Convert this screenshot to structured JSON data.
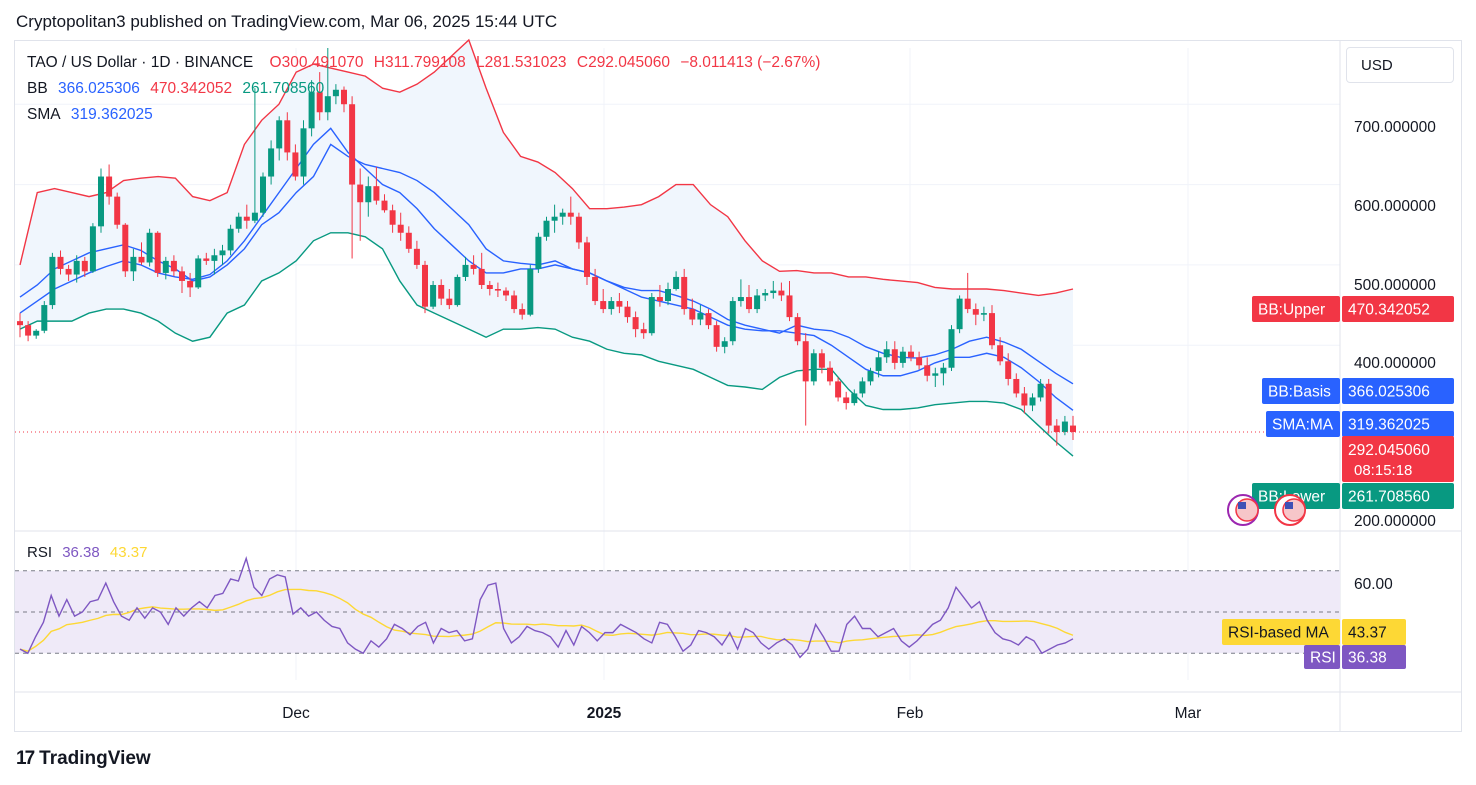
{
  "header": {
    "publisher_line": "Cryptopolitan3 published on TradingView.com, Mar 06, 2025 15:44 UTC"
  },
  "legend": {
    "symbol": "TAO / US Dollar · 1D · BINANCE",
    "open": "O300.491070",
    "high": "H311.799108",
    "low": "L281.531023",
    "close": "C292.045060",
    "change": "−8.011413 (−2.67%)",
    "bb_label": "BB",
    "bb_basis": "366.025306",
    "bb_upper": "470.342052",
    "bb_lower": "261.708560",
    "sma_label": "SMA",
    "sma_value": "319.362025",
    "rsi_label": "RSI",
    "rsi_value": "36.38",
    "rsi_ma_value": "43.37"
  },
  "currency": "USD",
  "footer": {
    "brand": "TradingView"
  },
  "colors": {
    "up": "#089981",
    "down": "#f23645",
    "bb_upper": "#f23645",
    "bb_basis": "#2962ff",
    "bb_lower": "#089981",
    "sma": "#2962ff",
    "rsi": "#7e57c2",
    "rsi_ma": "#fdd835",
    "band_fill": "#f0f6fd",
    "rsi_fill": "#efeaf8"
  },
  "price_axis": {
    "ticks": [
      "700.000000",
      "600.000000",
      "500.000000",
      "400.000000",
      "200.000000"
    ]
  },
  "rsi_axis": {
    "ticks": [
      "60.00"
    ]
  },
  "time_axis": {
    "ticks": [
      "Dec",
      "2025",
      "Feb",
      "Mar"
    ]
  },
  "price_labels": {
    "bb_upper": {
      "name": "BB:Upper",
      "value": "470.342052"
    },
    "bb_basis": {
      "name": "BB:Basis",
      "value": "366.025306"
    },
    "sma": {
      "name": "SMA:MA",
      "value": "319.362025"
    },
    "last": {
      "value": "292.045060",
      "countdown": "08:15:18"
    },
    "bb_lower": {
      "name": "BB:Lower",
      "value": "261.708560"
    }
  },
  "rsi_labels": {
    "rsi_ma": {
      "name": "RSI-based MA",
      "value": "43.37"
    },
    "rsi": {
      "name": "RSI",
      "value": "36.38"
    }
  },
  "chart_data": {
    "type": "candlestick",
    "price_range": [
      170,
      770
    ],
    "rsi_range": [
      18,
      82
    ],
    "rsi_bands": [
      70,
      50,
      30
    ],
    "candles": [
      {
        "o": 430,
        "h": 440,
        "l": 410,
        "c": 425
      },
      {
        "o": 425,
        "h": 430,
        "l": 405,
        "c": 412
      },
      {
        "o": 412,
        "h": 420,
        "l": 408,
        "c": 418
      },
      {
        "o": 418,
        "h": 455,
        "l": 415,
        "c": 450
      },
      {
        "o": 450,
        "h": 515,
        "l": 445,
        "c": 510
      },
      {
        "o": 510,
        "h": 518,
        "l": 488,
        "c": 495
      },
      {
        "o": 495,
        "h": 500,
        "l": 480,
        "c": 488
      },
      {
        "o": 488,
        "h": 512,
        "l": 478,
        "c": 505
      },
      {
        "o": 505,
        "h": 510,
        "l": 485,
        "c": 492
      },
      {
        "o": 492,
        "h": 552,
        "l": 490,
        "c": 548
      },
      {
        "o": 548,
        "h": 620,
        "l": 540,
        "c": 610
      },
      {
        "o": 610,
        "h": 625,
        "l": 575,
        "c": 585
      },
      {
        "o": 585,
        "h": 590,
        "l": 545,
        "c": 550
      },
      {
        "o": 550,
        "h": 552,
        "l": 485,
        "c": 492
      },
      {
        "o": 492,
        "h": 520,
        "l": 480,
        "c": 510
      },
      {
        "o": 510,
        "h": 528,
        "l": 500,
        "c": 503
      },
      {
        "o": 503,
        "h": 545,
        "l": 498,
        "c": 540
      },
      {
        "o": 540,
        "h": 542,
        "l": 485,
        "c": 490
      },
      {
        "o": 490,
        "h": 510,
        "l": 482,
        "c": 505
      },
      {
        "o": 505,
        "h": 512,
        "l": 486,
        "c": 492
      },
      {
        "o": 492,
        "h": 498,
        "l": 465,
        "c": 480
      },
      {
        "o": 480,
        "h": 490,
        "l": 460,
        "c": 472
      },
      {
        "o": 472,
        "h": 512,
        "l": 470,
        "c": 508
      },
      {
        "o": 508,
        "h": 515,
        "l": 500,
        "c": 505
      },
      {
        "o": 505,
        "h": 520,
        "l": 488,
        "c": 512
      },
      {
        "o": 512,
        "h": 525,
        "l": 500,
        "c": 518
      },
      {
        "o": 518,
        "h": 550,
        "l": 512,
        "c": 545
      },
      {
        "o": 545,
        "h": 565,
        "l": 540,
        "c": 560
      },
      {
        "o": 560,
        "h": 575,
        "l": 545,
        "c": 555
      },
      {
        "o": 555,
        "h": 720,
        "l": 552,
        "c": 565
      },
      {
        "o": 565,
        "h": 615,
        "l": 560,
        "c": 610
      },
      {
        "o": 610,
        "h": 655,
        "l": 600,
        "c": 645
      },
      {
        "o": 645,
        "h": 685,
        "l": 630,
        "c": 680
      },
      {
        "o": 680,
        "h": 690,
        "l": 630,
        "c": 640
      },
      {
        "o": 640,
        "h": 650,
        "l": 605,
        "c": 610
      },
      {
        "o": 610,
        "h": 680,
        "l": 600,
        "c": 670
      },
      {
        "o": 670,
        "h": 730,
        "l": 660,
        "c": 715
      },
      {
        "o": 715,
        "h": 740,
        "l": 680,
        "c": 690
      },
      {
        "o": 690,
        "h": 770,
        "l": 680,
        "c": 710
      },
      {
        "o": 710,
        "h": 725,
        "l": 700,
        "c": 718
      },
      {
        "o": 718,
        "h": 722,
        "l": 690,
        "c": 700
      },
      {
        "o": 700,
        "h": 710,
        "l": 508,
        "c": 600
      },
      {
        "o": 600,
        "h": 620,
        "l": 530,
        "c": 578
      },
      {
        "o": 578,
        "h": 610,
        "l": 560,
        "c": 598
      },
      {
        "o": 598,
        "h": 622,
        "l": 575,
        "c": 580
      },
      {
        "o": 580,
        "h": 588,
        "l": 565,
        "c": 568
      },
      {
        "o": 568,
        "h": 575,
        "l": 540,
        "c": 550
      },
      {
        "o": 550,
        "h": 565,
        "l": 530,
        "c": 540
      },
      {
        "o": 540,
        "h": 548,
        "l": 515,
        "c": 520
      },
      {
        "o": 520,
        "h": 530,
        "l": 495,
        "c": 500
      },
      {
        "o": 500,
        "h": 505,
        "l": 440,
        "c": 448
      },
      {
        "o": 448,
        "h": 480,
        "l": 445,
        "c": 475
      },
      {
        "o": 475,
        "h": 482,
        "l": 450,
        "c": 458
      },
      {
        "o": 458,
        "h": 470,
        "l": 445,
        "c": 450
      },
      {
        "o": 450,
        "h": 488,
        "l": 448,
        "c": 485
      },
      {
        "o": 485,
        "h": 510,
        "l": 480,
        "c": 500
      },
      {
        "o": 500,
        "h": 512,
        "l": 488,
        "c": 495
      },
      {
        "o": 495,
        "h": 515,
        "l": 470,
        "c": 475
      },
      {
        "o": 475,
        "h": 480,
        "l": 462,
        "c": 470
      },
      {
        "o": 470,
        "h": 478,
        "l": 460,
        "c": 468
      },
      {
        "o": 468,
        "h": 472,
        "l": 455,
        "c": 462
      },
      {
        "o": 462,
        "h": 468,
        "l": 440,
        "c": 445
      },
      {
        "o": 445,
        "h": 452,
        "l": 432,
        "c": 438
      },
      {
        "o": 438,
        "h": 500,
        "l": 436,
        "c": 495
      },
      {
        "o": 495,
        "h": 540,
        "l": 490,
        "c": 535
      },
      {
        "o": 535,
        "h": 560,
        "l": 530,
        "c": 555
      },
      {
        "o": 555,
        "h": 575,
        "l": 540,
        "c": 560
      },
      {
        "o": 560,
        "h": 570,
        "l": 550,
        "c": 565
      },
      {
        "o": 565,
        "h": 585,
        "l": 550,
        "c": 560
      },
      {
        "o": 560,
        "h": 565,
        "l": 520,
        "c": 528
      },
      {
        "o": 528,
        "h": 535,
        "l": 475,
        "c": 485
      },
      {
        "o": 485,
        "h": 495,
        "l": 450,
        "c": 455
      },
      {
        "o": 455,
        "h": 470,
        "l": 440,
        "c": 445
      },
      {
        "o": 445,
        "h": 460,
        "l": 438,
        "c": 455
      },
      {
        "o": 455,
        "h": 465,
        "l": 440,
        "c": 448
      },
      {
        "o": 448,
        "h": 455,
        "l": 428,
        "c": 435
      },
      {
        "o": 435,
        "h": 442,
        "l": 410,
        "c": 420
      },
      {
        "o": 420,
        "h": 428,
        "l": 408,
        "c": 415
      },
      {
        "o": 415,
        "h": 465,
        "l": 412,
        "c": 460
      },
      {
        "o": 460,
        "h": 475,
        "l": 448,
        "c": 455
      },
      {
        "o": 455,
        "h": 478,
        "l": 450,
        "c": 470
      },
      {
        "o": 470,
        "h": 492,
        "l": 468,
        "c": 485
      },
      {
        "o": 485,
        "h": 495,
        "l": 438,
        "c": 445
      },
      {
        "o": 445,
        "h": 458,
        "l": 425,
        "c": 432
      },
      {
        "o": 432,
        "h": 450,
        "l": 425,
        "c": 440
      },
      {
        "o": 440,
        "h": 445,
        "l": 420,
        "c": 425
      },
      {
        "o": 425,
        "h": 430,
        "l": 392,
        "c": 398
      },
      {
        "o": 398,
        "h": 410,
        "l": 390,
        "c": 405
      },
      {
        "o": 405,
        "h": 460,
        "l": 400,
        "c": 455
      },
      {
        "o": 455,
        "h": 482,
        "l": 448,
        "c": 460
      },
      {
        "o": 460,
        "h": 475,
        "l": 440,
        "c": 445
      },
      {
        "o": 445,
        "h": 470,
        "l": 440,
        "c": 462
      },
      {
        "o": 462,
        "h": 470,
        "l": 455,
        "c": 465
      },
      {
        "o": 465,
        "h": 480,
        "l": 458,
        "c": 468
      },
      {
        "o": 468,
        "h": 478,
        "l": 455,
        "c": 462
      },
      {
        "o": 462,
        "h": 480,
        "l": 430,
        "c": 435
      },
      {
        "o": 435,
        "h": 440,
        "l": 400,
        "c": 405
      },
      {
        "o": 405,
        "h": 415,
        "l": 300,
        "c": 355
      },
      {
        "o": 355,
        "h": 395,
        "l": 350,
        "c": 390
      },
      {
        "o": 390,
        "h": 395,
        "l": 365,
        "c": 372
      },
      {
        "o": 372,
        "h": 380,
        "l": 350,
        "c": 355
      },
      {
        "o": 355,
        "h": 360,
        "l": 330,
        "c": 335
      },
      {
        "o": 335,
        "h": 342,
        "l": 320,
        "c": 328
      },
      {
        "o": 328,
        "h": 345,
        "l": 325,
        "c": 340
      },
      {
        "o": 340,
        "h": 360,
        "l": 335,
        "c": 355
      },
      {
        "o": 355,
        "h": 372,
        "l": 350,
        "c": 368
      },
      {
        "o": 368,
        "h": 392,
        "l": 360,
        "c": 385
      },
      {
        "o": 385,
        "h": 405,
        "l": 378,
        "c": 395
      },
      {
        "o": 395,
        "h": 405,
        "l": 370,
        "c": 378
      },
      {
        "o": 378,
        "h": 398,
        "l": 372,
        "c": 392
      },
      {
        "o": 392,
        "h": 400,
        "l": 380,
        "c": 385
      },
      {
        "o": 385,
        "h": 392,
        "l": 370,
        "c": 375
      },
      {
        "o": 375,
        "h": 385,
        "l": 355,
        "c": 362
      },
      {
        "o": 362,
        "h": 372,
        "l": 348,
        "c": 365
      },
      {
        "o": 365,
        "h": 378,
        "l": 350,
        "c": 372
      },
      {
        "o": 372,
        "h": 425,
        "l": 368,
        "c": 420
      },
      {
        "o": 420,
        "h": 462,
        "l": 415,
        "c": 458
      },
      {
        "o": 458,
        "h": 490,
        "l": 440,
        "c": 445
      },
      {
        "o": 445,
        "h": 452,
        "l": 425,
        "c": 438
      },
      {
        "o": 438,
        "h": 448,
        "l": 430,
        "c": 440
      },
      {
        "o": 440,
        "h": 450,
        "l": 395,
        "c": 400
      },
      {
        "o": 400,
        "h": 410,
        "l": 375,
        "c": 380
      },
      {
        "o": 380,
        "h": 390,
        "l": 350,
        "c": 358
      },
      {
        "o": 358,
        "h": 365,
        "l": 335,
        "c": 340
      },
      {
        "o": 340,
        "h": 348,
        "l": 315,
        "c": 325
      },
      {
        "o": 325,
        "h": 340,
        "l": 318,
        "c": 335
      },
      {
        "o": 335,
        "h": 358,
        "l": 330,
        "c": 352
      },
      {
        "o": 352,
        "h": 358,
        "l": 290,
        "c": 300
      },
      {
        "o": 300,
        "h": 308,
        "l": 275,
        "c": 292
      },
      {
        "o": 292,
        "h": 312,
        "l": 288,
        "c": 305
      },
      {
        "o": 300,
        "h": 312,
        "l": 282,
        "c": 292
      }
    ],
    "bb_upper": [
      500,
      590,
      595,
      590,
      585,
      590,
      605,
      608,
      610,
      608,
      585,
      580,
      590,
      650,
      680,
      700,
      740,
      750,
      745,
      740,
      735,
      720,
      715,
      725,
      740,
      760,
      780,
      720,
      665,
      635,
      628,
      615,
      595,
      570,
      570,
      572,
      575,
      585,
      600,
      600,
      575,
      560,
      530,
      505,
      492,
      493,
      490,
      490,
      485,
      485,
      482,
      480,
      478,
      472,
      470,
      470,
      470,
      468,
      465,
      462,
      465,
      470
    ],
    "bb_basis": [
      460,
      475,
      495,
      505,
      515,
      520,
      525,
      518,
      505,
      495,
      480,
      485,
      500,
      520,
      550,
      565,
      590,
      610,
      650,
      635,
      625,
      620,
      615,
      605,
      590,
      570,
      550,
      520,
      505,
      502,
      500,
      505,
      495,
      490,
      480,
      472,
      468,
      468,
      462,
      455,
      445,
      432,
      425,
      420,
      415,
      425,
      420,
      418,
      410,
      398,
      390,
      385,
      384,
      388,
      395,
      405,
      410,
      404,
      395,
      380,
      365,
      352
    ],
    "bb_lower": [
      420,
      430,
      430,
      430,
      440,
      445,
      445,
      440,
      430,
      415,
      405,
      410,
      440,
      450,
      480,
      490,
      505,
      530,
      540,
      540,
      535,
      520,
      480,
      450,
      440,
      430,
      420,
      410,
      420,
      420,
      422,
      420,
      410,
      405,
      395,
      390,
      388,
      380,
      375,
      370,
      360,
      350,
      348,
      345,
      360,
      368,
      370,
      370,
      345,
      325,
      320,
      320,
      322,
      326,
      328,
      330,
      330,
      328,
      320,
      300,
      280,
      262
    ],
    "sma": [
      440,
      455,
      470,
      480,
      490,
      498,
      505,
      500,
      490,
      485,
      482,
      488,
      505,
      530,
      560,
      590,
      620,
      650,
      670,
      640,
      620,
      600,
      590,
      570,
      545,
      525,
      505,
      490,
      490,
      495,
      495,
      500,
      495,
      490,
      480,
      470,
      460,
      455,
      450,
      445,
      435,
      425,
      420,
      418,
      418,
      415,
      412,
      400,
      385,
      370,
      362,
      362,
      368,
      378,
      385,
      385,
      390,
      385,
      372,
      355,
      335,
      319
    ],
    "rsi": [
      32,
      30,
      38,
      45,
      58,
      48,
      56,
      48,
      50,
      55,
      56,
      64,
      55,
      48,
      46,
      52,
      47,
      52,
      50,
      44,
      52,
      48,
      52,
      55,
      52,
      58,
      59,
      66,
      65,
      76,
      62,
      58,
      66,
      68,
      67,
      49,
      52,
      48,
      50,
      46,
      43,
      42,
      35,
      32,
      30,
      36,
      33,
      37,
      44,
      42,
      39,
      43,
      45,
      35,
      42,
      40,
      41,
      36,
      37,
      56,
      63,
      64,
      42,
      35,
      38,
      43,
      41,
      40,
      38,
      33,
      41,
      34,
      43,
      40,
      36,
      40,
      40,
      44,
      42,
      40,
      37,
      35,
      45,
      44,
      38,
      31,
      34,
      41,
      40,
      38,
      34,
      40,
      32,
      42,
      40,
      35,
      32,
      35,
      37,
      34,
      28,
      32,
      44,
      38,
      31,
      31,
      44,
      48,
      42,
      42,
      38,
      40,
      42,
      36,
      33,
      36,
      40,
      44,
      46,
      52,
      62,
      57,
      52,
      55,
      46,
      40,
      37,
      36,
      34,
      38,
      36,
      30,
      32,
      34,
      35,
      37
    ]
  }
}
